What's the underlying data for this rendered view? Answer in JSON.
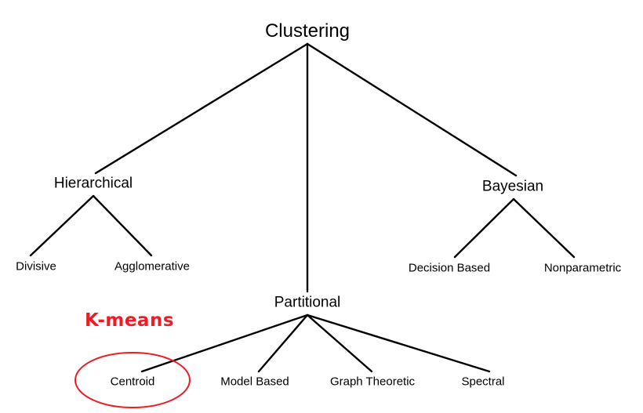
{
  "diagram": {
    "root": {
      "label": "Clustering"
    },
    "level1": [
      {
        "id": "hierarchical",
        "label": "Hierarchical"
      },
      {
        "id": "partitional",
        "label": "Partitional"
      },
      {
        "id": "bayesian",
        "label": "Bayesian"
      }
    ],
    "level2": {
      "hierarchical": [
        {
          "id": "divisive",
          "label": "Divisive"
        },
        {
          "id": "agglomerative",
          "label": "Agglomerative"
        }
      ],
      "bayesian": [
        {
          "id": "decision-based",
          "label": "Decision Based"
        },
        {
          "id": "nonparametric",
          "label": "Nonparametric"
        }
      ],
      "partitional": [
        {
          "id": "centroid",
          "label": "Centroid"
        },
        {
          "id": "model-based",
          "label": "Model Based"
        },
        {
          "id": "graph-theoretic",
          "label": "Graph Theoretic"
        },
        {
          "id": "spectral",
          "label": "Spectral"
        }
      ]
    }
  },
  "annotation": {
    "label": "K-means",
    "target": "centroid",
    "color": "#ee1c25"
  },
  "colors": {
    "edge": "#000000",
    "text": "#000000",
    "highlight": "#ee1c25"
  }
}
